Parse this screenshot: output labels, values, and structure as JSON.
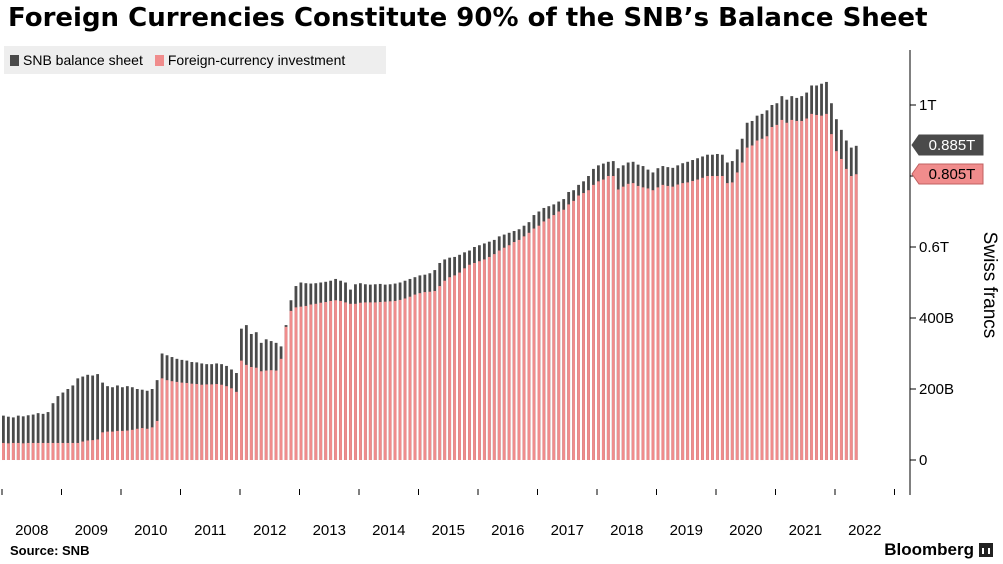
{
  "title": "Foreign Currencies Constitute 90% of the SNB’s Balance Sheet",
  "source": "Source:  SNB",
  "brand": "Bloomberg",
  "colors": {
    "balance": "#4a4a4a",
    "fx": "#f08c8c",
    "axis": "#000000"
  },
  "chart_data": {
    "type": "bar",
    "ylabel": "Swiss francs",
    "ylim": [
      -100,
      1200
    ],
    "yticks": [
      {
        "value": 0,
        "label": "0"
      },
      {
        "value": 200,
        "label": "200B"
      },
      {
        "value": 400,
        "label": "400B"
      },
      {
        "value": 600,
        "label": "0.6T"
      },
      {
        "value": 800,
        "label": ""
      },
      {
        "value": 1000,
        "label": "1T"
      }
    ],
    "xticks": [
      "2008",
      "2009",
      "2010",
      "2011",
      "2012",
      "2013",
      "2014",
      "2015",
      "2016",
      "2017",
      "2018",
      "2019",
      "2020",
      "2021",
      "2022"
    ],
    "x_start_year": 2008,
    "annotations": [
      {
        "series": "SNB balance sheet",
        "label": "0.885T",
        "value": 885
      },
      {
        "series": "Foreign-currency investment",
        "label": "0.805T",
        "value": 805
      }
    ],
    "series": [
      {
        "name": "SNB balance sheet",
        "values": [
          125,
          122,
          120,
          125,
          123,
          126,
          128,
          132,
          130,
          135,
          160,
          180,
          190,
          200,
          210,
          230,
          235,
          240,
          238,
          242,
          218,
          208,
          205,
          210,
          205,
          208,
          205,
          200,
          198,
          195,
          200,
          225,
          300,
          295,
          290,
          285,
          282,
          280,
          276,
          275,
          272,
          270,
          270,
          272,
          270,
          265,
          255,
          245,
          370,
          380,
          355,
          360,
          330,
          340,
          335,
          330,
          320,
          380,
          450,
          490,
          500,
          498,
          497,
          498,
          500,
          502,
          505,
          510,
          505,
          500,
          480,
          495,
          498,
          495,
          494,
          495,
          496,
          494,
          495,
          497,
          500,
          505,
          510,
          515,
          520,
          522,
          526,
          535,
          555,
          565,
          570,
          572,
          578,
          585,
          590,
          600,
          605,
          610,
          615,
          620,
          630,
          635,
          640,
          645,
          650,
          660,
          670,
          690,
          700,
          710,
          715,
          720,
          728,
          735,
          755,
          760,
          775,
          785,
          800,
          820,
          830,
          835,
          840,
          842,
          822,
          830,
          838,
          840,
          832,
          828,
          818,
          810,
          822,
          828,
          825,
          823,
          830,
          836,
          840,
          845,
          850,
          855,
          860,
          860,
          862,
          860,
          838,
          842,
          875,
          905,
          950,
          955,
          970,
          975,
          985,
          1000,
          1005,
          1025,
          1015,
          1025,
          1020,
          1025,
          1035,
          1055,
          1055,
          1060,
          1065,
          1005,
          960,
          930,
          900,
          880,
          885
        ]
      },
      {
        "name": "Foreign-currency investment",
        "values": [
          48,
          47,
          48,
          48,
          47,
          48,
          48,
          48,
          48,
          48,
          48,
          48,
          48,
          48,
          48,
          48,
          52,
          55,
          56,
          58,
          78,
          80,
          80,
          82,
          82,
          83,
          85,
          88,
          90,
          88,
          92,
          110,
          230,
          225,
          222,
          220,
          218,
          217,
          215,
          214,
          212,
          213,
          213,
          214,
          212,
          208,
          202,
          192,
          280,
          268,
          262,
          260,
          250,
          252,
          253,
          252,
          285,
          375,
          420,
          430,
          432,
          434,
          438,
          440,
          443,
          445,
          448,
          450,
          448,
          444,
          440,
          440,
          443,
          444,
          444,
          444,
          445,
          446,
          447,
          448,
          451,
          455,
          460,
          466,
          470,
          473,
          474,
          476,
          490,
          505,
          515,
          520,
          528,
          540,
          550,
          555,
          560,
          565,
          572,
          580,
          590,
          598,
          605,
          614,
          620,
          630,
          640,
          652,
          660,
          672,
          680,
          690,
          700,
          705,
          720,
          730,
          745,
          752,
          760,
          775,
          785,
          790,
          800,
          800,
          762,
          770,
          778,
          780,
          772,
          768,
          765,
          760,
          768,
          775,
          772,
          770,
          776,
          780,
          782,
          786,
          790,
          795,
          800,
          800,
          800,
          800,
          780,
          782,
          810,
          838,
          880,
          886,
          900,
          905,
          912,
          938,
          944,
          958,
          950,
          958,
          955,
          955,
          962,
          975,
          972,
          970,
          975,
          918,
          870,
          848,
          820,
          800,
          805
        ]
      }
    ]
  },
  "legend": [
    {
      "label": "SNB balance sheet"
    },
    {
      "label": "Foreign-currency investment"
    }
  ]
}
